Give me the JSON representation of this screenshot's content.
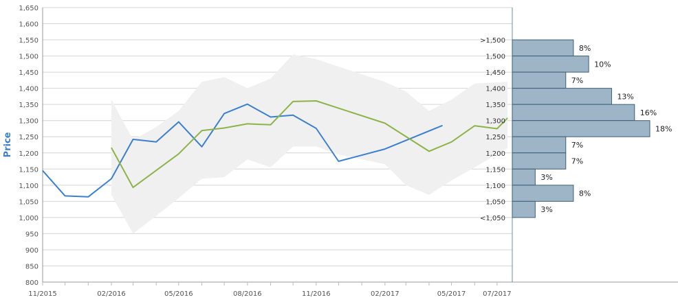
{
  "chart_data": {
    "type": "line",
    "ylabel": "Price",
    "ylim": [
      800,
      1650
    ],
    "y_ticks": [
      "1,650",
      "1,600",
      "1,550",
      "1,500",
      "1,450",
      "1,400",
      "1,350",
      "1,300",
      "1,250",
      "1,200",
      "1,150",
      "1,100",
      "1,050",
      "1,000",
      "950",
      "900",
      "850",
      "800"
    ],
    "x_ticks": [
      "11/2015",
      "02/2016",
      "05/2016",
      "08/2016",
      "11/2016",
      "02/2017",
      "05/2017",
      "07/2017"
    ],
    "grid": true,
    "colors": {
      "series_blue": "#3a7fd0",
      "series_green": "#8db347",
      "band": "#f0f0f0",
      "hist_fill": "#9db5c6",
      "hist_stroke": "#3d5f73",
      "label_blue": "#3a7fd0"
    },
    "series": [
      {
        "points": [
          [
            "2015-11-01",
            1145
          ],
          [
            "2015-12-01",
            1067
          ],
          [
            "2016-01-01",
            1064
          ],
          [
            "2016-02-01",
            1120
          ],
          [
            "2016-03-01",
            1242
          ],
          [
            "2016-04-01",
            1234
          ],
          [
            "2016-05-01",
            1296
          ],
          [
            "2016-06-01",
            1219
          ],
          [
            "2016-07-01",
            1322
          ],
          [
            "2016-08-01",
            1351
          ],
          [
            "2016-09-01",
            1311
          ],
          [
            "2016-10-01",
            1317
          ],
          [
            "2016-11-01",
            1276
          ],
          [
            "2016-12-01",
            1174
          ],
          [
            "2017-02-01",
            1212
          ],
          [
            "2017-04-19",
            1285
          ]
        ]
      },
      {
        "points": [
          [
            "2016-02-01",
            1216
          ],
          [
            "2016-03-01",
            1093
          ],
          [
            "2016-05-01",
            1197
          ],
          [
            "2016-06-01",
            1269
          ],
          [
            "2016-07-01",
            1277
          ],
          [
            "2016-08-01",
            1290
          ],
          [
            "2016-09-01",
            1287
          ],
          [
            "2016-10-01",
            1359
          ],
          [
            "2016-11-01",
            1361
          ],
          [
            "2017-02-01",
            1292
          ],
          [
            "2017-04-01",
            1205
          ],
          [
            "2017-05-01",
            1234
          ],
          [
            "2017-06-01",
            1284
          ],
          [
            "2017-07-01",
            1275
          ],
          [
            "2017-07-15",
            1308
          ]
        ]
      }
    ],
    "band": {
      "upper": [
        [
          "2016-02-01",
          1365
        ],
        [
          "2016-03-01",
          1240
        ],
        [
          "2016-04-01",
          1280
        ],
        [
          "2016-05-01",
          1330
        ],
        [
          "2016-06-01",
          1420
        ],
        [
          "2016-07-01",
          1435
        ],
        [
          "2016-08-01",
          1400
        ],
        [
          "2016-09-01",
          1430
        ],
        [
          "2016-10-01",
          1505
        ],
        [
          "2016-11-01",
          1490
        ],
        [
          "2017-02-01",
          1420
        ],
        [
          "2017-03-01",
          1390
        ],
        [
          "2017-04-01",
          1330
        ],
        [
          "2017-05-01",
          1365
        ],
        [
          "2017-06-01",
          1415
        ],
        [
          "2017-07-15",
          1420
        ]
      ],
      "lower": [
        [
          "2017-07-15",
          1215
        ],
        [
          "2017-06-01",
          1155
        ],
        [
          "2017-05-01",
          1115
        ],
        [
          "2017-04-01",
          1070
        ],
        [
          "2017-03-01",
          1100
        ],
        [
          "2017-02-01",
          1165
        ],
        [
          "2016-12-01",
          1195
        ],
        [
          "2016-11-01",
          1220
        ],
        [
          "2016-10-01",
          1220
        ],
        [
          "2016-09-01",
          1155
        ],
        [
          "2016-08-01",
          1180
        ],
        [
          "2016-07-01",
          1125
        ],
        [
          "2016-06-01",
          1120
        ],
        [
          "2016-05-01",
          1060
        ],
        [
          "2016-04-01",
          1005
        ],
        [
          "2016-03-01",
          950
        ],
        [
          "2016-02-01",
          1070
        ]
      ]
    },
    "histogram": [
      {
        "label": ">1,500",
        "bin_center": 1525,
        "percent": 8,
        "percent_label": "8%"
      },
      {
        "label": "1,500",
        "bin_center": 1475,
        "percent": 10,
        "percent_label": "10%"
      },
      {
        "label": "1,450",
        "bin_center": 1425,
        "percent": 7,
        "percent_label": "7%"
      },
      {
        "label": "1,400",
        "bin_center": 1375,
        "percent": 13,
        "percent_label": "13%"
      },
      {
        "label": "1,350",
        "bin_center": 1325,
        "percent": 16,
        "percent_label": "16%"
      },
      {
        "label": "1,300",
        "bin_center": 1275,
        "percent": 18,
        "percent_label": "18%"
      },
      {
        "label": "1,250",
        "bin_center": 1225,
        "percent": 7,
        "percent_label": "7%"
      },
      {
        "label": "1,200",
        "bin_center": 1175,
        "percent": 7,
        "percent_label": "7%"
      },
      {
        "label": "1,150",
        "bin_center": 1125,
        "percent": 3,
        "percent_label": "3%"
      },
      {
        "label": "1,100",
        "bin_center": 1075,
        "percent": 8,
        "percent_label": "8%"
      },
      {
        "label": "1,050",
        "bin_center": 1025,
        "percent": 3,
        "percent_label": "3%"
      },
      {
        "label": "<1,050",
        "bin_center": null,
        "percent": null,
        "percent_label": ""
      }
    ]
  }
}
